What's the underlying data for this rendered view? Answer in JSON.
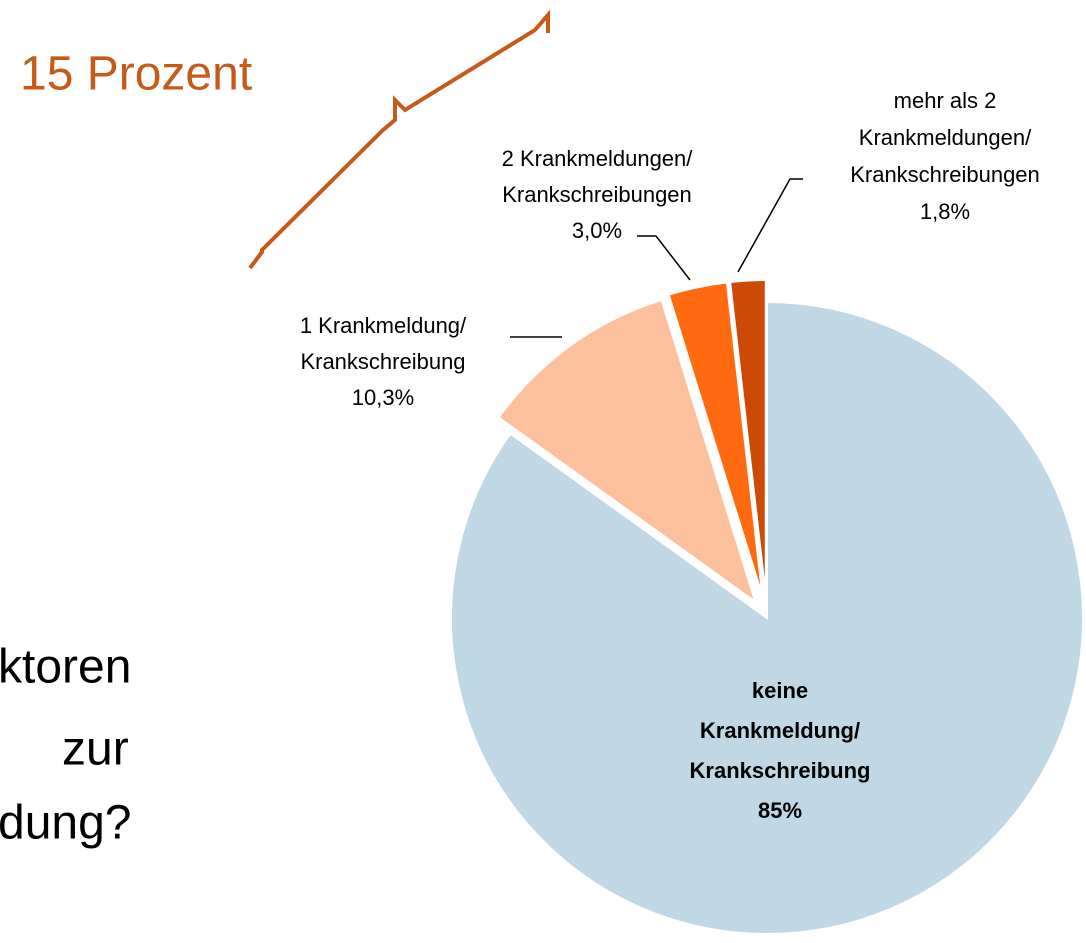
{
  "chart_data": {
    "type": "pie",
    "categories": [
      [
        "keine",
        "Krankmeldung/",
        "Krankschreibung"
      ],
      [
        "1 Krankmeldung/",
        "Krankschreibung"
      ],
      [
        "2 Krankmeldungen/",
        "Krankschreibungen"
      ],
      [
        "mehr als  2",
        "Krankmeldungen/",
        "Krankschreibungen"
      ]
    ],
    "values": [
      85,
      10.3,
      3.0,
      1.8
    ],
    "value_labels": [
      "85%",
      "10,3%",
      "3,0%",
      "1,8%"
    ],
    "colors": [
      "#c0d8e6",
      "#fcc09c",
      "#ff6a10",
      "#cc4a05"
    ],
    "annotations": [
      "15 Prozent",
      "ktoren",
      "zur",
      "dung?"
    ]
  }
}
